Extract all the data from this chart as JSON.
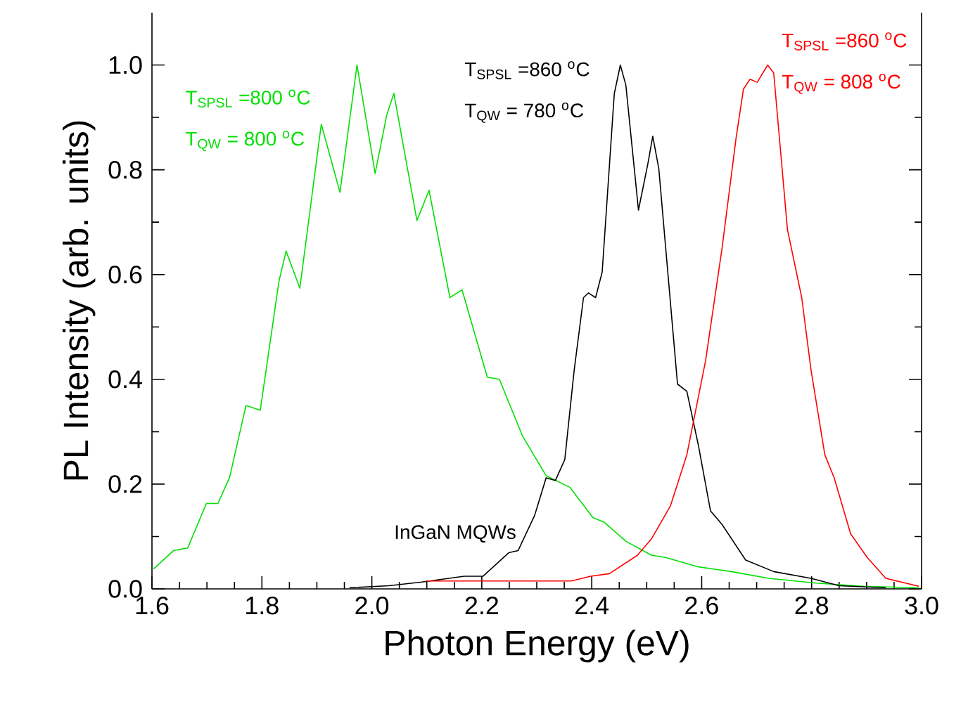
{
  "chart_data": {
    "type": "line",
    "xlabel": "Photon Energy (eV)",
    "ylabel": "PL Intensity (arb. units)",
    "xlim": [
      1.6,
      3.0
    ],
    "xticks": [
      1.6,
      1.8,
      {
        "value": 2.0,
        "label": "2.0"
      },
      2.2,
      2.4,
      2.6,
      2.8,
      {
        "value": 3.0,
        "label": "3.0"
      }
    ],
    "ylim": [
      0,
      1.1
    ],
    "yticks": [
      {
        "value": 0,
        "label": "0.0"
      },
      0.2,
      0.4,
      0.6,
      0.8,
      {
        "value": 1.0,
        "label": "1.0"
      }
    ],
    "grid": false,
    "marker": "none",
    "line_style": "solid",
    "series": [
      {
        "color": "#00e000",
        "x": [
          1.603,
          1.639,
          1.665,
          1.699,
          1.72,
          1.741,
          1.771,
          1.797,
          1.831,
          1.844,
          1.869,
          1.908,
          1.942,
          1.973,
          2.006,
          2.027,
          2.04,
          2.082,
          2.104,
          2.142,
          2.164,
          2.21,
          2.232,
          2.274,
          2.317,
          2.36,
          2.402,
          2.423,
          2.462,
          2.509,
          2.534,
          2.594,
          2.654,
          2.722,
          2.808,
          2.893,
          2.996
        ],
        "values": [
          0.038,
          0.073,
          0.078,
          0.163,
          0.163,
          0.212,
          0.35,
          0.341,
          0.587,
          0.645,
          0.574,
          0.887,
          0.757,
          1.0,
          0.793,
          0.904,
          0.946,
          0.703,
          0.761,
          0.556,
          0.571,
          0.404,
          0.4,
          0.292,
          0.216,
          0.194,
          0.136,
          0.127,
          0.091,
          0.064,
          0.06,
          0.042,
          0.033,
          0.02,
          0.011,
          0.005,
          0.002
        ]
      },
      {
        "color": "#000000",
        "x": [
          1.959,
          2.031,
          2.091,
          2.168,
          2.202,
          2.249,
          2.266,
          2.296,
          2.317,
          2.334,
          2.351,
          2.368,
          2.385,
          2.394,
          2.407,
          2.419,
          2.441,
          2.452,
          2.462,
          2.485,
          2.502,
          2.511,
          2.522,
          2.556,
          2.573,
          2.594,
          2.616,
          2.637,
          2.68,
          2.731,
          2.799,
          2.85,
          2.935
        ],
        "values": [
          0.002,
          0.006,
          0.013,
          0.024,
          0.024,
          0.069,
          0.073,
          0.14,
          0.212,
          0.207,
          0.247,
          0.417,
          0.556,
          0.565,
          0.556,
          0.605,
          0.945,
          1.0,
          0.962,
          0.723,
          0.811,
          0.864,
          0.802,
          0.391,
          0.377,
          0.274,
          0.149,
          0.123,
          0.055,
          0.033,
          0.02,
          0.006,
          0.002
        ]
      },
      {
        "color": "#ff0000",
        "x": [
          2.099,
          2.168,
          2.253,
          2.363,
          2.398,
          2.432,
          2.483,
          2.509,
          2.543,
          2.573,
          2.607,
          2.637,
          2.663,
          2.676,
          2.688,
          2.701,
          2.72,
          2.731,
          2.756,
          2.782,
          2.799,
          2.824,
          2.841,
          2.871,
          2.901,
          2.935,
          2.995
        ],
        "values": [
          0.015,
          0.015,
          0.015,
          0.015,
          0.024,
          0.029,
          0.064,
          0.096,
          0.158,
          0.256,
          0.435,
          0.65,
          0.864,
          0.954,
          0.973,
          0.967,
          1.0,
          0.985,
          0.686,
          0.556,
          0.417,
          0.256,
          0.212,
          0.105,
          0.06,
          0.02,
          0.005
        ]
      }
    ],
    "annotations": [
      "T$_{SPSL}$ =800 $^{o}$C",
      "T$_{QW}$ = 800 $^{o}$C",
      "T$_{SPSL}$ =860 $^{o}$C",
      "T$_{QW}$ = 780 $^{o}$C",
      "T$_{SPSL}$ =860 $^{o}$C",
      "T$_{QW}$ = 808 $^{o}$C",
      "InGaN MQWs"
    ]
  }
}
